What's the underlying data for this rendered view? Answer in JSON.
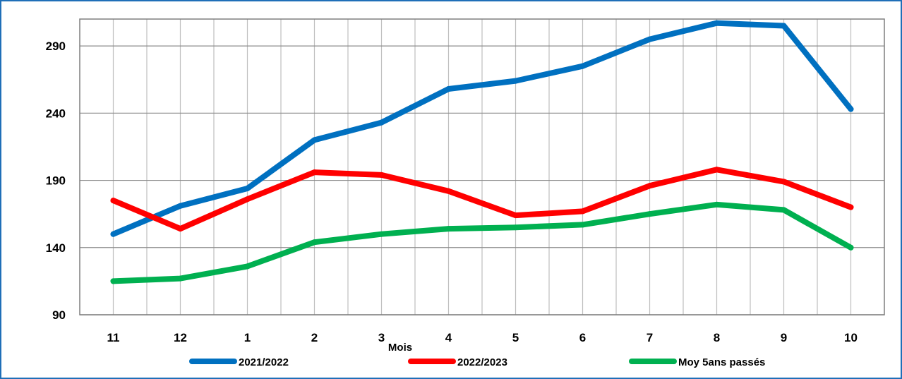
{
  "chart_data": {
    "type": "line",
    "title": "",
    "xlabel": "Mois",
    "ylabel": "",
    "categories": [
      "11",
      "12",
      "1",
      "2",
      "3",
      "4",
      "5",
      "6",
      "7",
      "8",
      "9",
      "10"
    ],
    "ylim": [
      90,
      310
    ],
    "yticks": [
      "90",
      "140",
      "190",
      "240",
      "290"
    ],
    "grid": true,
    "legend_position": "bottom",
    "series": [
      {
        "name": "2021/2022",
        "color": "#0070c0",
        "values": [
          150,
          171,
          184,
          220,
          233,
          258,
          264,
          275,
          295,
          307,
          305,
          243
        ]
      },
      {
        "name": "2022/2023",
        "color": "#ff0000",
        "values": [
          175,
          154,
          176,
          196,
          194,
          182,
          164,
          167,
          186,
          198,
          189,
          170
        ]
      },
      {
        "name": "Moy 5ans passés",
        "color": "#00b050",
        "values": [
          115,
          117,
          126,
          144,
          150,
          154,
          155,
          157,
          165,
          172,
          168,
          140
        ]
      }
    ]
  }
}
